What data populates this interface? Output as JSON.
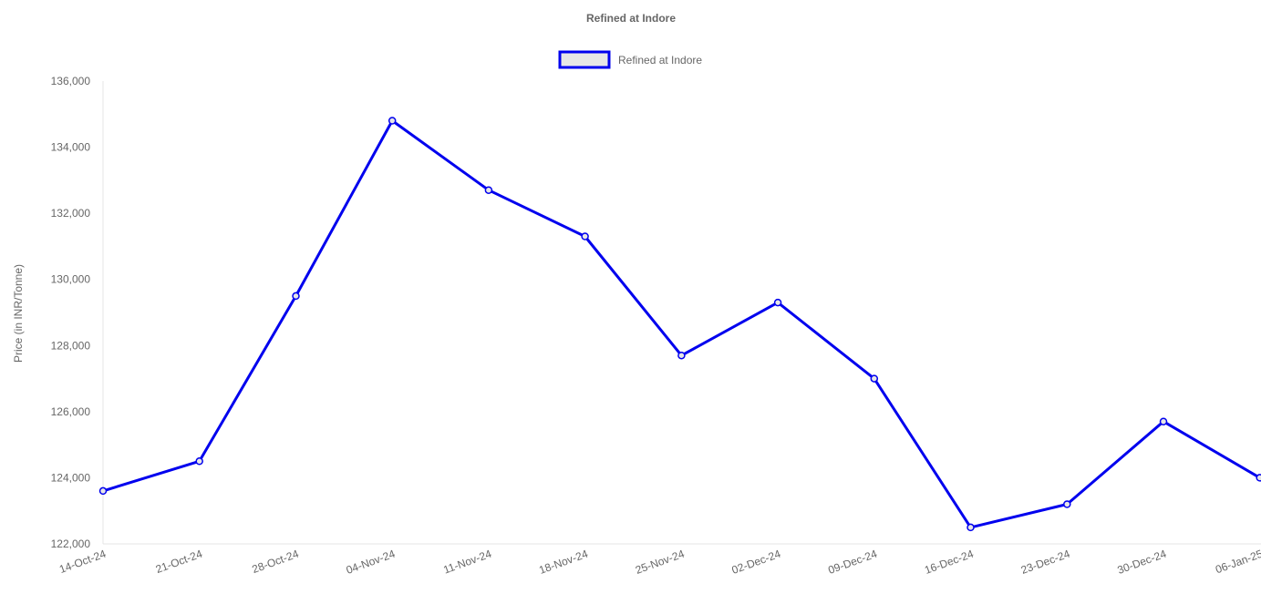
{
  "chart_data": {
    "type": "line",
    "title": "Refined at Indore",
    "ylabel": "Price (in INR/Tonne)",
    "xlabel": "",
    "ylim": [
      122000,
      136000
    ],
    "y_ticks": [
      "122,000",
      "124,000",
      "126,000",
      "128,000",
      "130,000",
      "132,000",
      "134,000",
      "136,000"
    ],
    "grid": false,
    "legend_position": "top-center",
    "categories": [
      "14-Oct-24",
      "21-Oct-24",
      "28-Oct-24",
      "04-Nov-24",
      "11-Nov-24",
      "18-Nov-24",
      "25-Nov-24",
      "02-Dec-24",
      "09-Dec-24",
      "16-Dec-24",
      "23-Dec-24",
      "30-Dec-24",
      "06-Jan-25"
    ],
    "series": [
      {
        "name": "Refined at Indore",
        "color": "#0000ee",
        "fill": "#e6e6e6",
        "values": [
          123600,
          124500,
          129500,
          134800,
          132700,
          131300,
          127700,
          129300,
          127000,
          122500,
          123200,
          125700,
          124000
        ]
      }
    ]
  }
}
